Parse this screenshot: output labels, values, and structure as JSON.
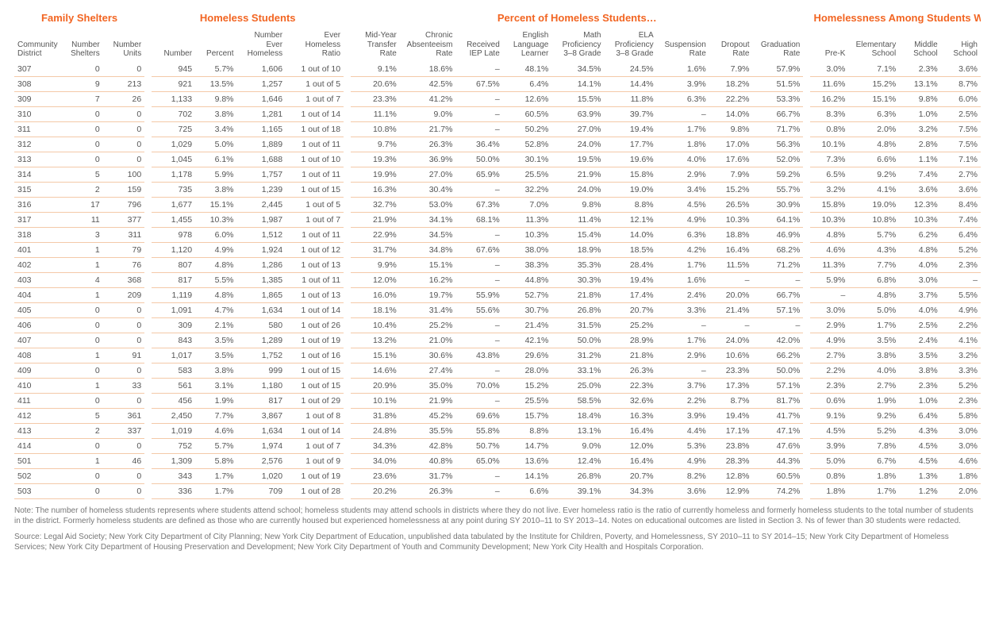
{
  "groups": {
    "g1": "Family Shelters",
    "g2": "Homeless Students",
    "g3": "Percent of Homeless Students…",
    "g4": "Homelessness Among Students Who Are in…"
  },
  "headers": {
    "community_district": "Community District",
    "num_shelters": "Number Shelters",
    "num_units": "Number Units",
    "number": "Number",
    "percent": "Percent",
    "num_ever_homeless": "Number Ever Homeless",
    "ever_homeless_ratio": "Ever Homeless Ratio",
    "midyear_transfer": "Mid-Year Transfer Rate",
    "chronic_absent": "Chronic Absenteeism Rate",
    "received_iep": "Received IEP Late",
    "ell": "English Language Learner",
    "math_prof": "Math Proficiency 3–8 Grade",
    "ela_prof": "ELA Proficiency 3–8 Grade",
    "suspension": "Suspension Rate",
    "dropout": "Dropout Rate",
    "graduation": "Graduation Rate",
    "prek": "Pre-K",
    "elementary": "Elementary School",
    "middle": "Middle School",
    "high": "High School"
  },
  "rows": [
    {
      "cd": "307",
      "ns": "0",
      "nu": "0",
      "n": "945",
      "p": "5.7%",
      "neh": "1,606",
      "ehr": "1 out of 10",
      "myr": "9.1%",
      "car": "18.6%",
      "iep": "–",
      "ell": "48.1%",
      "math": "34.5%",
      "ela": "24.5%",
      "sus": "1.6%",
      "drop": "7.9%",
      "grad": "57.9%",
      "prek": "3.0%",
      "elem": "7.1%",
      "mid": "2.3%",
      "high": "3.6%"
    },
    {
      "cd": "308",
      "ns": "9",
      "nu": "213",
      "n": "921",
      "p": "13.5%",
      "neh": "1,257",
      "ehr": "1 out of 5",
      "myr": "20.6%",
      "car": "42.5%",
      "iep": "67.5%",
      "ell": "6.4%",
      "math": "14.1%",
      "ela": "14.4%",
      "sus": "3.9%",
      "drop": "18.2%",
      "grad": "51.5%",
      "prek": "11.6%",
      "elem": "15.2%",
      "mid": "13.1%",
      "high": "8.7%"
    },
    {
      "cd": "309",
      "ns": "7",
      "nu": "26",
      "n": "1,133",
      "p": "9.8%",
      "neh": "1,646",
      "ehr": "1 out of 7",
      "myr": "23.3%",
      "car": "41.2%",
      "iep": "–",
      "ell": "12.6%",
      "math": "15.5%",
      "ela": "11.8%",
      "sus": "6.3%",
      "drop": "22.2%",
      "grad": "53.3%",
      "prek": "16.2%",
      "elem": "15.1%",
      "mid": "9.8%",
      "high": "6.0%"
    },
    {
      "cd": "310",
      "ns": "0",
      "nu": "0",
      "n": "702",
      "p": "3.8%",
      "neh": "1,281",
      "ehr": "1 out of 14",
      "myr": "11.1%",
      "car": "9.0%",
      "iep": "–",
      "ell": "60.5%",
      "math": "63.9%",
      "ela": "39.7%",
      "sus": "–",
      "drop": "14.0%",
      "grad": "66.7%",
      "prek": "8.3%",
      "elem": "6.3%",
      "mid": "1.0%",
      "high": "2.5%"
    },
    {
      "cd": "311",
      "ns": "0",
      "nu": "0",
      "n": "725",
      "p": "3.4%",
      "neh": "1,165",
      "ehr": "1 out of 18",
      "myr": "10.8%",
      "car": "21.7%",
      "iep": "–",
      "ell": "50.2%",
      "math": "27.0%",
      "ela": "19.4%",
      "sus": "1.7%",
      "drop": "9.8%",
      "grad": "71.7%",
      "prek": "0.8%",
      "elem": "2.0%",
      "mid": "3.2%",
      "high": "7.5%"
    },
    {
      "cd": "312",
      "ns": "0",
      "nu": "0",
      "n": "1,029",
      "p": "5.0%",
      "neh": "1,889",
      "ehr": "1 out of 11",
      "myr": "9.7%",
      "car": "26.3%",
      "iep": "36.4%",
      "ell": "52.8%",
      "math": "24.0%",
      "ela": "17.7%",
      "sus": "1.8%",
      "drop": "17.0%",
      "grad": "56.3%",
      "prek": "10.1%",
      "elem": "4.8%",
      "mid": "2.8%",
      "high": "7.5%"
    },
    {
      "cd": "313",
      "ns": "0",
      "nu": "0",
      "n": "1,045",
      "p": "6.1%",
      "neh": "1,688",
      "ehr": "1 out of 10",
      "myr": "19.3%",
      "car": "36.9%",
      "iep": "50.0%",
      "ell": "30.1%",
      "math": "19.5%",
      "ela": "19.6%",
      "sus": "4.0%",
      "drop": "17.6%",
      "grad": "52.0%",
      "prek": "7.3%",
      "elem": "6.6%",
      "mid": "1.1%",
      "high": "7.1%"
    },
    {
      "cd": "314",
      "ns": "5",
      "nu": "100",
      "n": "1,178",
      "p": "5.9%",
      "neh": "1,757",
      "ehr": "1 out of 11",
      "myr": "19.9%",
      "car": "27.0%",
      "iep": "65.9%",
      "ell": "25.5%",
      "math": "21.9%",
      "ela": "15.8%",
      "sus": "2.9%",
      "drop": "7.9%",
      "grad": "59.2%",
      "prek": "6.5%",
      "elem": "9.2%",
      "mid": "7.4%",
      "high": "2.7%"
    },
    {
      "cd": "315",
      "ns": "2",
      "nu": "159",
      "n": "735",
      "p": "3.8%",
      "neh": "1,239",
      "ehr": "1 out of 15",
      "myr": "16.3%",
      "car": "30.4%",
      "iep": "–",
      "ell": "32.2%",
      "math": "24.0%",
      "ela": "19.0%",
      "sus": "3.4%",
      "drop": "15.2%",
      "grad": "55.7%",
      "prek": "3.2%",
      "elem": "4.1%",
      "mid": "3.6%",
      "high": "3.6%"
    },
    {
      "cd": "316",
      "ns": "17",
      "nu": "796",
      "n": "1,677",
      "p": "15.1%",
      "neh": "2,445",
      "ehr": "1 out of 5",
      "myr": "32.7%",
      "car": "53.0%",
      "iep": "67.3%",
      "ell": "7.0%",
      "math": "9.8%",
      "ela": "8.8%",
      "sus": "4.5%",
      "drop": "26.5%",
      "grad": "30.9%",
      "prek": "15.8%",
      "elem": "19.0%",
      "mid": "12.3%",
      "high": "8.4%"
    },
    {
      "cd": "317",
      "ns": "11",
      "nu": "377",
      "n": "1,455",
      "p": "10.3%",
      "neh": "1,987",
      "ehr": "1 out of 7",
      "myr": "21.9%",
      "car": "34.1%",
      "iep": "68.1%",
      "ell": "11.3%",
      "math": "11.4%",
      "ela": "12.1%",
      "sus": "4.9%",
      "drop": "10.3%",
      "grad": "64.1%",
      "prek": "10.3%",
      "elem": "10.8%",
      "mid": "10.3%",
      "high": "7.4%"
    },
    {
      "cd": "318",
      "ns": "3",
      "nu": "311",
      "n": "978",
      "p": "6.0%",
      "neh": "1,512",
      "ehr": "1 out of 11",
      "myr": "22.9%",
      "car": "34.5%",
      "iep": "–",
      "ell": "10.3%",
      "math": "15.4%",
      "ela": "14.0%",
      "sus": "6.3%",
      "drop": "18.8%",
      "grad": "46.9%",
      "prek": "4.8%",
      "elem": "5.7%",
      "mid": "6.2%",
      "high": "6.4%"
    },
    {
      "cd": "401",
      "ns": "1",
      "nu": "79",
      "n": "1,120",
      "p": "4.9%",
      "neh": "1,924",
      "ehr": "1 out of 12",
      "myr": "31.7%",
      "car": "34.8%",
      "iep": "67.6%",
      "ell": "38.0%",
      "math": "18.9%",
      "ela": "18.5%",
      "sus": "4.2%",
      "drop": "16.4%",
      "grad": "68.2%",
      "prek": "4.6%",
      "elem": "4.3%",
      "mid": "4.8%",
      "high": "5.2%"
    },
    {
      "cd": "402",
      "ns": "1",
      "nu": "76",
      "n": "807",
      "p": "4.8%",
      "neh": "1,286",
      "ehr": "1 out of 13",
      "myr": "9.9%",
      "car": "15.1%",
      "iep": "–",
      "ell": "38.3%",
      "math": "35.3%",
      "ela": "28.4%",
      "sus": "1.7%",
      "drop": "11.5%",
      "grad": "71.2%",
      "prek": "11.3%",
      "elem": "7.7%",
      "mid": "4.0%",
      "high": "2.3%"
    },
    {
      "cd": "403",
      "ns": "4",
      "nu": "368",
      "n": "817",
      "p": "5.5%",
      "neh": "1,385",
      "ehr": "1 out of 11",
      "myr": "12.0%",
      "car": "16.2%",
      "iep": "–",
      "ell": "44.8%",
      "math": "30.3%",
      "ela": "19.4%",
      "sus": "1.6%",
      "drop": "–",
      "grad": "–",
      "prek": "5.9%",
      "elem": "6.8%",
      "mid": "3.0%",
      "high": "–"
    },
    {
      "cd": "404",
      "ns": "1",
      "nu": "209",
      "n": "1,119",
      "p": "4.8%",
      "neh": "1,865",
      "ehr": "1 out of 13",
      "myr": "16.0%",
      "car": "19.7%",
      "iep": "55.9%",
      "ell": "52.7%",
      "math": "21.8%",
      "ela": "17.4%",
      "sus": "2.4%",
      "drop": "20.0%",
      "grad": "66.7%",
      "prek": "–",
      "elem": "4.8%",
      "mid": "3.7%",
      "high": "5.5%"
    },
    {
      "cd": "405",
      "ns": "0",
      "nu": "0",
      "n": "1,091",
      "p": "4.7%",
      "neh": "1,634",
      "ehr": "1 out of 14",
      "myr": "18.1%",
      "car": "31.4%",
      "iep": "55.6%",
      "ell": "30.7%",
      "math": "26.8%",
      "ela": "20.7%",
      "sus": "3.3%",
      "drop": "21.4%",
      "grad": "57.1%",
      "prek": "3.0%",
      "elem": "5.0%",
      "mid": "4.0%",
      "high": "4.9%"
    },
    {
      "cd": "406",
      "ns": "0",
      "nu": "0",
      "n": "309",
      "p": "2.1%",
      "neh": "580",
      "ehr": "1 out of 26",
      "myr": "10.4%",
      "car": "25.2%",
      "iep": "–",
      "ell": "21.4%",
      "math": "31.5%",
      "ela": "25.2%",
      "sus": "–",
      "drop": "–",
      "grad": "–",
      "prek": "2.9%",
      "elem": "1.7%",
      "mid": "2.5%",
      "high": "2.2%"
    },
    {
      "cd": "407",
      "ns": "0",
      "nu": "0",
      "n": "843",
      "p": "3.5%",
      "neh": "1,289",
      "ehr": "1 out of 19",
      "myr": "13.2%",
      "car": "21.0%",
      "iep": "–",
      "ell": "42.1%",
      "math": "50.0%",
      "ela": "28.9%",
      "sus": "1.7%",
      "drop": "24.0%",
      "grad": "42.0%",
      "prek": "4.9%",
      "elem": "3.5%",
      "mid": "2.4%",
      "high": "4.1%"
    },
    {
      "cd": "408",
      "ns": "1",
      "nu": "91",
      "n": "1,017",
      "p": "3.5%",
      "neh": "1,752",
      "ehr": "1 out of 16",
      "myr": "15.1%",
      "car": "30.6%",
      "iep": "43.8%",
      "ell": "29.6%",
      "math": "31.2%",
      "ela": "21.8%",
      "sus": "2.9%",
      "drop": "10.6%",
      "grad": "66.2%",
      "prek": "2.7%",
      "elem": "3.8%",
      "mid": "3.5%",
      "high": "3.2%"
    },
    {
      "cd": "409",
      "ns": "0",
      "nu": "0",
      "n": "583",
      "p": "3.8%",
      "neh": "999",
      "ehr": "1 out of 15",
      "myr": "14.6%",
      "car": "27.4%",
      "iep": "–",
      "ell": "28.0%",
      "math": "33.1%",
      "ela": "26.3%",
      "sus": "–",
      "drop": "23.3%",
      "grad": "50.0%",
      "prek": "2.2%",
      "elem": "4.0%",
      "mid": "3.8%",
      "high": "3.3%"
    },
    {
      "cd": "410",
      "ns": "1",
      "nu": "33",
      "n": "561",
      "p": "3.1%",
      "neh": "1,180",
      "ehr": "1 out of 15",
      "myr": "20.9%",
      "car": "35.0%",
      "iep": "70.0%",
      "ell": "15.2%",
      "math": "25.0%",
      "ela": "22.3%",
      "sus": "3.7%",
      "drop": "17.3%",
      "grad": "57.1%",
      "prek": "2.3%",
      "elem": "2.7%",
      "mid": "2.3%",
      "high": "5.2%"
    },
    {
      "cd": "411",
      "ns": "0",
      "nu": "0",
      "n": "456",
      "p": "1.9%",
      "neh": "817",
      "ehr": "1 out of 29",
      "myr": "10.1%",
      "car": "21.9%",
      "iep": "–",
      "ell": "25.5%",
      "math": "58.5%",
      "ela": "32.6%",
      "sus": "2.2%",
      "drop": "8.7%",
      "grad": "81.7%",
      "prek": "0.6%",
      "elem": "1.9%",
      "mid": "1.0%",
      "high": "2.3%"
    },
    {
      "cd": "412",
      "ns": "5",
      "nu": "361",
      "n": "2,450",
      "p": "7.7%",
      "neh": "3,867",
      "ehr": "1 out of 8",
      "myr": "31.8%",
      "car": "45.2%",
      "iep": "69.6%",
      "ell": "15.7%",
      "math": "18.4%",
      "ela": "16.3%",
      "sus": "3.9%",
      "drop": "19.4%",
      "grad": "41.7%",
      "prek": "9.1%",
      "elem": "9.2%",
      "mid": "6.4%",
      "high": "5.8%"
    },
    {
      "cd": "413",
      "ns": "2",
      "nu": "337",
      "n": "1,019",
      "p": "4.6%",
      "neh": "1,634",
      "ehr": "1 out of 14",
      "myr": "24.8%",
      "car": "35.5%",
      "iep": "55.8%",
      "ell": "8.8%",
      "math": "13.1%",
      "ela": "16.4%",
      "sus": "4.4%",
      "drop": "17.1%",
      "grad": "47.1%",
      "prek": "4.5%",
      "elem": "5.2%",
      "mid": "4.3%",
      "high": "3.0%"
    },
    {
      "cd": "414",
      "ns": "0",
      "nu": "0",
      "n": "752",
      "p": "5.7%",
      "neh": "1,974",
      "ehr": "1 out of 7",
      "myr": "34.3%",
      "car": "42.8%",
      "iep": "50.7%",
      "ell": "14.7%",
      "math": "9.0%",
      "ela": "12.0%",
      "sus": "5.3%",
      "drop": "23.8%",
      "grad": "47.6%",
      "prek": "3.9%",
      "elem": "7.8%",
      "mid": "4.5%",
      "high": "3.0%"
    },
    {
      "cd": "501",
      "ns": "1",
      "nu": "46",
      "n": "1,309",
      "p": "5.8%",
      "neh": "2,576",
      "ehr": "1 out of 9",
      "myr": "34.0%",
      "car": "40.8%",
      "iep": "65.0%",
      "ell": "13.6%",
      "math": "12.4%",
      "ela": "16.4%",
      "sus": "4.9%",
      "drop": "28.3%",
      "grad": "44.3%",
      "prek": "5.0%",
      "elem": "6.7%",
      "mid": "4.5%",
      "high": "4.6%"
    },
    {
      "cd": "502",
      "ns": "0",
      "nu": "0",
      "n": "343",
      "p": "1.7%",
      "neh": "1,020",
      "ehr": "1 out of 19",
      "myr": "23.6%",
      "car": "31.7%",
      "iep": "–",
      "ell": "14.1%",
      "math": "26.8%",
      "ela": "20.7%",
      "sus": "8.2%",
      "drop": "12.8%",
      "grad": "60.5%",
      "prek": "0.8%",
      "elem": "1.8%",
      "mid": "1.3%",
      "high": "1.8%"
    },
    {
      "cd": "503",
      "ns": "0",
      "nu": "0",
      "n": "336",
      "p": "1.7%",
      "neh": "709",
      "ehr": "1 out of 28",
      "myr": "20.2%",
      "car": "26.3%",
      "iep": "–",
      "ell": "6.6%",
      "math": "39.1%",
      "ela": "34.3%",
      "sus": "3.6%",
      "drop": "12.9%",
      "grad": "74.2%",
      "prek": "1.8%",
      "elem": "1.7%",
      "mid": "1.2%",
      "high": "2.0%"
    }
  ],
  "notes": {
    "n1": "Note: The number of homeless students represents where students attend school; homeless students may attend schools in districts where they do not live. Ever homeless ratio is the ratio of currently homeless and formerly homeless students to the total number of students in the district. Formerly homeless students are defined as those who are currently housed but experienced homelessness at any point during SY 2010–11 to SY 2013–14. Notes on educational outcomes are listed in Section 3. Ns of fewer than 30 students were redacted.",
    "n2": "Source: Legal Aid Society; New York City Department of City Planning; New York City Department of Education, unpublished data tabulated by the Institute for Children, Poverty, and Homelessness, SY 2010–11 to SY 2014–15; New York City Department of Homeless Services; New York City Department of Housing Preservation and Development; New York City Department of Youth and Community Development; New York City Health and Hospitals Corporation."
  },
  "style": {
    "accent": "#f26522",
    "row_border": "#f4c9a8",
    "text": "#555555",
    "note_text": "#777777",
    "bg": "#ffffff"
  }
}
